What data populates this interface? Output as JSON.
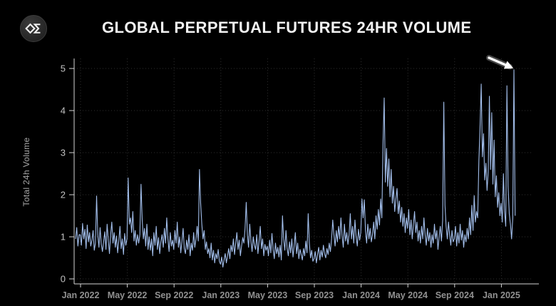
{
  "header": {
    "title": "GLOBAL PERPETUAL FUTURES 24HR VOLUME",
    "logo": "artemis-logo"
  },
  "colors": {
    "background": "#000000",
    "line": "#a3bfec",
    "title": "#f2f2f2",
    "axis": "#d4d4d4",
    "x_tick_label": "#919191",
    "y_tick_label": "#c2c2c2",
    "grid": "#2e2e2e",
    "annotation": "#ffffff"
  },
  "chart_data": {
    "type": "line",
    "title": "GLOBAL PERPETUAL FUTURES 24HR VOLUME",
    "xlabel": "",
    "ylabel": "Total 24h Volume",
    "ylim": [
      0,
      5
    ],
    "grid": true,
    "legend": "none",
    "y_ticks": [
      "0",
      "1",
      "2",
      "3",
      "4",
      "5"
    ],
    "x_ticks": [
      "Jan 2022",
      "May 2022",
      "Sep 2022",
      "Jan 2023",
      "May 2023",
      "Sep 2023",
      "Jan 2024",
      "May 2024",
      "Sep 2024",
      "Jan 2025"
    ],
    "series": [
      {
        "name": "Total 24h Volume",
        "color": "#a3bfec",
        "values": [
          0.95,
          1.22,
          0.78,
          1.05,
          1.05,
          0.8,
          1.32,
          0.95,
          1.18,
          0.72,
          1.28,
          0.88,
          1.1,
          0.78,
          0.92,
          1.15,
          0.68,
          0.85,
          1.97,
          1.05,
          0.75,
          1.22,
          0.82,
          0.65,
          0.88,
          1.12,
          0.7,
          1.3,
          0.92,
          0.6,
          1.05,
          1.35,
          0.85,
          1.1,
          0.75,
          1.02,
          0.62,
          0.9,
          1.25,
          0.72,
          0.95,
          0.58,
          1.08,
          0.8,
          0.95,
          2.4,
          1.3,
          1.45,
          1.1,
          1.6,
          0.9,
          1.15,
          0.8,
          1.05,
          0.85,
          1.05,
          2.25,
          1.4,
          0.95,
          1.2,
          0.78,
          1.3,
          0.7,
          1.0,
          0.68,
          0.95,
          0.55,
          1.1,
          0.8,
          1.25,
          0.7,
          0.98,
          0.6,
          0.88,
          1.05,
          0.75,
          1.2,
          0.85,
          1.45,
          0.95,
          0.65,
          1.1,
          0.78,
          0.92,
          0.7,
          1.15,
          0.85,
          1.35,
          0.75,
          1.0,
          0.62,
          0.9,
          1.2,
          0.72,
          0.6,
          0.92,
          0.7,
          1.05,
          0.55,
          0.85,
          0.68,
          1.1,
          0.75,
          0.95,
          1.25,
          0.9,
          2.6,
          1.8,
          1.3,
          0.95,
          1.15,
          0.7,
          0.88,
          0.6,
          0.72,
          0.5,
          0.85,
          0.45,
          0.68,
          0.38,
          0.6,
          0.48,
          0.7,
          0.42,
          0.35,
          0.52,
          0.28,
          0.45,
          0.6,
          0.38,
          0.55,
          0.72,
          0.48,
          0.8,
          0.65,
          0.95,
          0.58,
          0.85,
          1.1,
          0.7,
          0.92,
          0.55,
          0.78,
          0.98,
          0.85,
          1.2,
          1.82,
          1.05,
          0.75,
          1.3,
          0.9,
          0.65,
          1.0,
          0.8,
          0.7,
          1.05,
          0.6,
          0.9,
          1.25,
          0.72,
          0.95,
          0.55,
          0.82,
          0.68,
          0.78,
          0.55,
          0.92,
          0.62,
          1.08,
          0.7,
          0.48,
          0.85,
          0.6,
          0.75,
          0.52,
          0.8,
          0.45,
          1.5,
          0.95,
          0.68,
          1.15,
          0.72,
          0.55,
          0.88,
          0.62,
          0.95,
          0.52,
          0.78,
          1.1,
          0.6,
          0.85,
          0.48,
          0.7,
          0.58,
          0.45,
          0.72,
          0.55,
          0.9,
          0.62,
          1.55,
          0.85,
          0.5,
          0.68,
          0.42,
          0.48,
          0.65,
          0.38,
          0.58,
          0.75,
          0.45,
          0.68,
          0.52,
          0.8,
          0.6,
          0.5,
          0.72,
          0.58,
          0.85,
          0.65,
          0.95,
          1.4,
          1.05,
          0.78,
          1.15,
          0.88,
          1.25,
          0.95,
          1.45,
          1.02,
          0.75,
          1.3,
          0.9,
          1.1,
          0.82,
          1.05,
          1.55,
          0.95,
          1.25,
          0.85,
          1.4,
          1.0,
          0.78,
          1.18,
          0.92,
          1.1,
          1.9,
          1.45,
          1.88,
          1.15,
          0.85,
          1.3,
          0.95,
          1.2,
          0.88,
          1.05,
          1.35,
          0.95,
          1.5,
          1.18,
          1.65,
          1.28,
          1.9,
          1.45,
          3.2,
          4.3,
          2.3,
          3.1,
          2.2,
          2.85,
          1.95,
          2.6,
          1.8,
          2.2,
          1.6,
          1.9,
          2.15,
          1.55,
          1.85,
          1.35,
          1.7,
          1.25,
          1.55,
          1.1,
          1.45,
          1.2,
          1.65,
          1.05,
          1.4,
          0.95,
          1.3,
          1.6,
          1.1,
          1.35,
          0.9,
          1.15,
          0.85,
          1.25,
          0.95,
          1.45,
          1.05,
          0.8,
          1.2,
          0.9,
          1.1,
          0.75,
          1.05,
          0.85,
          1.3,
          0.95,
          1.15,
          0.7,
          1.0,
          1.25,
          0.9,
          1.4,
          4.2,
          1.75,
          1.25,
          0.95,
          1.35,
          1.05,
          0.8,
          1.15,
          0.88,
          0.95,
          1.25,
          0.78,
          1.1,
          0.85,
          1.3,
          0.92,
          1.15,
          0.75,
          1.05,
          0.88,
          1.2,
          0.95,
          1.45,
          1.05,
          1.75,
          1.15,
          1.98,
          1.35,
          1.6,
          1.45,
          2.8,
          3.6,
          4.63,
          2.9,
          3.45,
          2.35,
          2.75,
          2.1,
          2.55,
          4.34,
          2.6,
          3.95,
          2.25,
          3.3,
          1.95,
          2.45,
          1.7,
          2.05,
          1.5,
          1.8,
          1.35,
          2.5,
          1.6,
          1.25,
          4.59,
          2.2,
          1.55,
          1.3,
          0.95,
          1.45,
          4.97,
          1.5
        ]
      }
    ],
    "annotation": {
      "type": "arrow",
      "color": "#ffffff",
      "points_to": "latest peak (~4.97)"
    }
  }
}
